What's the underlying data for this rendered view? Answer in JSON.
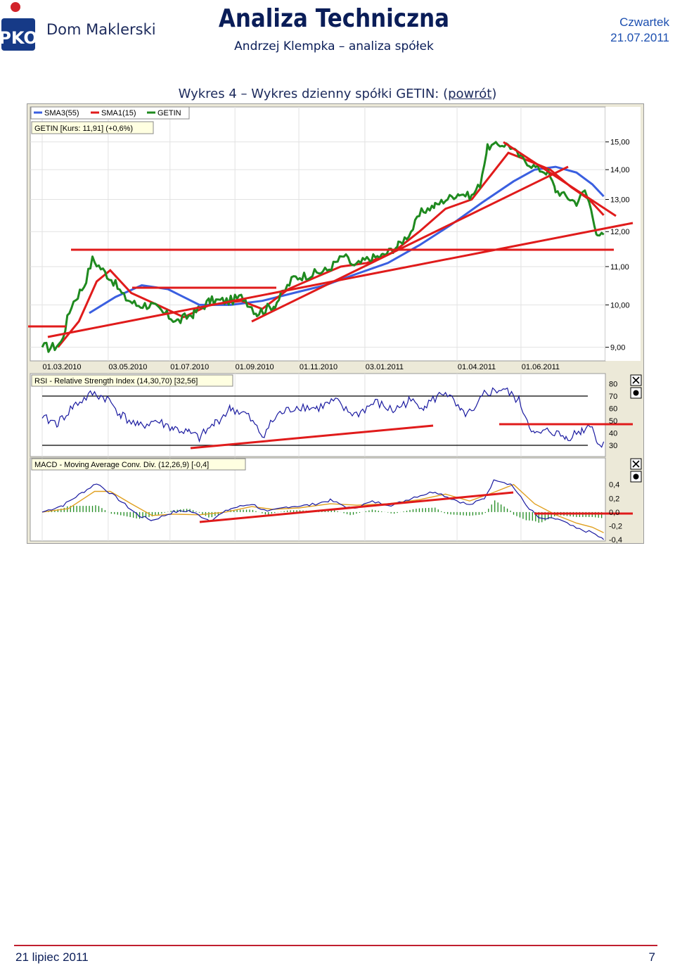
{
  "header": {
    "logo_text": "Dom Maklerski",
    "title": "Analiza Techniczna",
    "subtitle": "Andrzej Klempka – analiza spółek",
    "weekday": "Czwartek",
    "date": "21.07.2011"
  },
  "caption": {
    "prefix": "Wykres 4 – Wykres dzienny spółki GETIN: (",
    "link": "powrót",
    "suffix": ")"
  },
  "footer": {
    "date": "21 lipiec 2011",
    "page": "7"
  },
  "colors": {
    "price": "#1f8a1f",
    "sma_fast": "#e01b1b",
    "sma_slow": "#3a5fe0",
    "trendline": "#e01b1b",
    "indicator": "#1a1aa0",
    "signal": "#e0a020"
  },
  "chart_data": [
    {
      "type": "line",
      "legend": [
        "SMA3(55)",
        "SMA1(15)",
        "GETIN"
      ],
      "info_label": "GETIN [Kurs: 11,91] (+0,6%)",
      "x_ticks": [
        "01.03.2010",
        "03.05.2010",
        "01.07.2010",
        "01.09.2010",
        "01.11.2010",
        "03.01.2011",
        "01.04.2011",
        "01.06.2011"
      ],
      "y_ticks": [
        "15,00",
        "14,00",
        "13,00",
        "12,00",
        "11,00",
        "10,00",
        "9,00"
      ],
      "ylim": [
        8.7,
        15.5
      ],
      "scale": "log",
      "price_series": [
        {
          "d": 0,
          "v": 9.0
        },
        {
          "d": 10,
          "v": 9.0
        },
        {
          "d": 18,
          "v": 9.1
        },
        {
          "d": 28,
          "v": 10.0
        },
        {
          "d": 40,
          "v": 10.5
        },
        {
          "d": 48,
          "v": 11.2
        },
        {
          "d": 58,
          "v": 10.9
        },
        {
          "d": 68,
          "v": 10.6
        },
        {
          "d": 78,
          "v": 10.2
        },
        {
          "d": 90,
          "v": 10.0
        },
        {
          "d": 104,
          "v": 10.0
        },
        {
          "d": 115,
          "v": 9.8
        },
        {
          "d": 130,
          "v": 9.6
        },
        {
          "d": 145,
          "v": 9.8
        },
        {
          "d": 160,
          "v": 10.1
        },
        {
          "d": 178,
          "v": 10.1
        },
        {
          "d": 192,
          "v": 10.2
        },
        {
          "d": 205,
          "v": 9.8
        },
        {
          "d": 222,
          "v": 10.0
        },
        {
          "d": 240,
          "v": 10.7
        },
        {
          "d": 258,
          "v": 10.8
        },
        {
          "d": 272,
          "v": 10.9
        },
        {
          "d": 288,
          "v": 11.3
        },
        {
          "d": 298,
          "v": 11.0
        },
        {
          "d": 310,
          "v": 11.2
        },
        {
          "d": 325,
          "v": 11.3
        },
        {
          "d": 340,
          "v": 11.6
        },
        {
          "d": 352,
          "v": 12.0
        },
        {
          "d": 362,
          "v": 12.6
        },
        {
          "d": 375,
          "v": 12.8
        },
        {
          "d": 385,
          "v": 13.0
        },
        {
          "d": 398,
          "v": 13.2
        },
        {
          "d": 410,
          "v": 13.1
        },
        {
          "d": 418,
          "v": 13.5
        },
        {
          "d": 425,
          "v": 14.8
        },
        {
          "d": 435,
          "v": 14.9
        },
        {
          "d": 445,
          "v": 14.9
        },
        {
          "d": 455,
          "v": 14.5
        },
        {
          "d": 465,
          "v": 14.2
        },
        {
          "d": 475,
          "v": 14.0
        },
        {
          "d": 483,
          "v": 13.9
        },
        {
          "d": 490,
          "v": 13.3
        },
        {
          "d": 500,
          "v": 13.1
        },
        {
          "d": 510,
          "v": 12.9
        },
        {
          "d": 518,
          "v": 13.3
        },
        {
          "d": 525,
          "v": 12.6
        },
        {
          "d": 530,
          "v": 11.8
        },
        {
          "d": 536,
          "v": 11.91
        }
      ],
      "sma_fast": [
        {
          "d": 15,
          "v": 9.0
        },
        {
          "d": 35,
          "v": 9.6
        },
        {
          "d": 52,
          "v": 10.6
        },
        {
          "d": 65,
          "v": 10.9
        },
        {
          "d": 85,
          "v": 10.3
        },
        {
          "d": 110,
          "v": 10.0
        },
        {
          "d": 135,
          "v": 9.7
        },
        {
          "d": 160,
          "v": 10.0
        },
        {
          "d": 190,
          "v": 10.1
        },
        {
          "d": 210,
          "v": 9.9
        },
        {
          "d": 235,
          "v": 10.4
        },
        {
          "d": 260,
          "v": 10.7
        },
        {
          "d": 285,
          "v": 11.0
        },
        {
          "d": 310,
          "v": 11.1
        },
        {
          "d": 335,
          "v": 11.4
        },
        {
          "d": 360,
          "v": 12.0
        },
        {
          "d": 385,
          "v": 12.7
        },
        {
          "d": 410,
          "v": 13.0
        },
        {
          "d": 428,
          "v": 13.8
        },
        {
          "d": 445,
          "v": 14.6
        },
        {
          "d": 465,
          "v": 14.3
        },
        {
          "d": 485,
          "v": 14.0
        },
        {
          "d": 505,
          "v": 13.4
        },
        {
          "d": 522,
          "v": 13.0
        },
        {
          "d": 536,
          "v": 12.5
        }
      ],
      "sma_slow": [
        {
          "d": 45,
          "v": 9.8
        },
        {
          "d": 70,
          "v": 10.2
        },
        {
          "d": 95,
          "v": 10.5
        },
        {
          "d": 120,
          "v": 10.4
        },
        {
          "d": 150,
          "v": 10.0
        },
        {
          "d": 180,
          "v": 10.0
        },
        {
          "d": 210,
          "v": 10.1
        },
        {
          "d": 240,
          "v": 10.3
        },
        {
          "d": 270,
          "v": 10.5
        },
        {
          "d": 300,
          "v": 10.8
        },
        {
          "d": 330,
          "v": 11.1
        },
        {
          "d": 360,
          "v": 11.6
        },
        {
          "d": 390,
          "v": 12.2
        },
        {
          "d": 420,
          "v": 12.9
        },
        {
          "d": 450,
          "v": 13.6
        },
        {
          "d": 470,
          "v": 14.0
        },
        {
          "d": 490,
          "v": 14.1
        },
        {
          "d": 510,
          "v": 13.9
        },
        {
          "d": 525,
          "v": 13.5
        },
        {
          "d": 536,
          "v": 13.1
        }
      ]
    },
    {
      "type": "line",
      "title": "RSI - Relative Strength Index (14,30,70) [32,56]",
      "y_ticks": [
        "80",
        "70",
        "60",
        "50",
        "40",
        "30"
      ],
      "ylim": [
        22,
        86
      ],
      "levels": [
        70,
        30
      ],
      "series": [
        {
          "d": 0,
          "v": 52
        },
        {
          "d": 15,
          "v": 48
        },
        {
          "d": 30,
          "v": 62
        },
        {
          "d": 48,
          "v": 72
        },
        {
          "d": 62,
          "v": 68
        },
        {
          "d": 75,
          "v": 55
        },
        {
          "d": 92,
          "v": 45
        },
        {
          "d": 108,
          "v": 50
        },
        {
          "d": 125,
          "v": 44
        },
        {
          "d": 140,
          "v": 40
        },
        {
          "d": 150,
          "v": 36
        },
        {
          "d": 165,
          "v": 48
        },
        {
          "d": 180,
          "v": 60
        },
        {
          "d": 195,
          "v": 55
        },
        {
          "d": 210,
          "v": 38
        },
        {
          "d": 225,
          "v": 55
        },
        {
          "d": 245,
          "v": 62
        },
        {
          "d": 262,
          "v": 60
        },
        {
          "d": 280,
          "v": 66
        },
        {
          "d": 290,
          "v": 58
        },
        {
          "d": 300,
          "v": 55
        },
        {
          "d": 318,
          "v": 65
        },
        {
          "d": 335,
          "v": 58
        },
        {
          "d": 350,
          "v": 66
        },
        {
          "d": 365,
          "v": 62
        },
        {
          "d": 385,
          "v": 74
        },
        {
          "d": 400,
          "v": 56
        },
        {
          "d": 412,
          "v": 56
        },
        {
          "d": 422,
          "v": 72
        },
        {
          "d": 440,
          "v": 76
        },
        {
          "d": 455,
          "v": 66
        },
        {
          "d": 470,
          "v": 38
        },
        {
          "d": 485,
          "v": 42
        },
        {
          "d": 500,
          "v": 36
        },
        {
          "d": 515,
          "v": 42
        },
        {
          "d": 525,
          "v": 48
        },
        {
          "d": 530,
          "v": 30
        },
        {
          "d": 536,
          "v": 33
        }
      ]
    },
    {
      "type": "line",
      "title": "MACD - Moving Average Conv. Div. (12,26,9) [-0,4]",
      "y_ticks": [
        "0,4",
        "0,2",
        "0,0",
        "-0,2",
        "-0,4"
      ],
      "ylim": [
        -0.42,
        0.52
      ],
      "macd": [
        {
          "d": 0,
          "v": 0.0
        },
        {
          "d": 20,
          "v": 0.1
        },
        {
          "d": 40,
          "v": 0.3
        },
        {
          "d": 52,
          "v": 0.42
        },
        {
          "d": 70,
          "v": 0.22
        },
        {
          "d": 92,
          "v": -0.05
        },
        {
          "d": 105,
          "v": -0.12
        },
        {
          "d": 125,
          "v": 0.0
        },
        {
          "d": 140,
          "v": 0.02
        },
        {
          "d": 160,
          "v": -0.12
        },
        {
          "d": 180,
          "v": 0.05
        },
        {
          "d": 200,
          "v": 0.12
        },
        {
          "d": 215,
          "v": 0.0
        },
        {
          "d": 235,
          "v": 0.08
        },
        {
          "d": 255,
          "v": 0.1
        },
        {
          "d": 275,
          "v": 0.17
        },
        {
          "d": 295,
          "v": 0.05
        },
        {
          "d": 315,
          "v": 0.15
        },
        {
          "d": 335,
          "v": 0.1
        },
        {
          "d": 355,
          "v": 0.22
        },
        {
          "d": 375,
          "v": 0.3
        },
        {
          "d": 390,
          "v": 0.2
        },
        {
          "d": 408,
          "v": 0.1
        },
        {
          "d": 422,
          "v": 0.2
        },
        {
          "d": 432,
          "v": 0.48
        },
        {
          "d": 448,
          "v": 0.4
        },
        {
          "d": 462,
          "v": 0.1
        },
        {
          "d": 475,
          "v": -0.1
        },
        {
          "d": 492,
          "v": -0.1
        },
        {
          "d": 510,
          "v": -0.24
        },
        {
          "d": 525,
          "v": -0.3
        },
        {
          "d": 536,
          "v": -0.4
        }
      ],
      "signal": [
        {
          "d": 0,
          "v": 0.0
        },
        {
          "d": 25,
          "v": 0.05
        },
        {
          "d": 50,
          "v": 0.3
        },
        {
          "d": 65,
          "v": 0.3
        },
        {
          "d": 85,
          "v": 0.12
        },
        {
          "d": 105,
          "v": -0.05
        },
        {
          "d": 125,
          "v": -0.03
        },
        {
          "d": 150,
          "v": -0.04
        },
        {
          "d": 175,
          "v": 0.0
        },
        {
          "d": 200,
          "v": 0.08
        },
        {
          "d": 220,
          "v": 0.04
        },
        {
          "d": 245,
          "v": 0.06
        },
        {
          "d": 275,
          "v": 0.12
        },
        {
          "d": 300,
          "v": 0.1
        },
        {
          "d": 330,
          "v": 0.12
        },
        {
          "d": 360,
          "v": 0.18
        },
        {
          "d": 385,
          "v": 0.26
        },
        {
          "d": 408,
          "v": 0.16
        },
        {
          "d": 430,
          "v": 0.28
        },
        {
          "d": 450,
          "v": 0.4
        },
        {
          "d": 470,
          "v": 0.12
        },
        {
          "d": 490,
          "v": -0.04
        },
        {
          "d": 510,
          "v": -0.16
        },
        {
          "d": 525,
          "v": -0.22
        },
        {
          "d": 536,
          "v": -0.3
        }
      ]
    }
  ]
}
